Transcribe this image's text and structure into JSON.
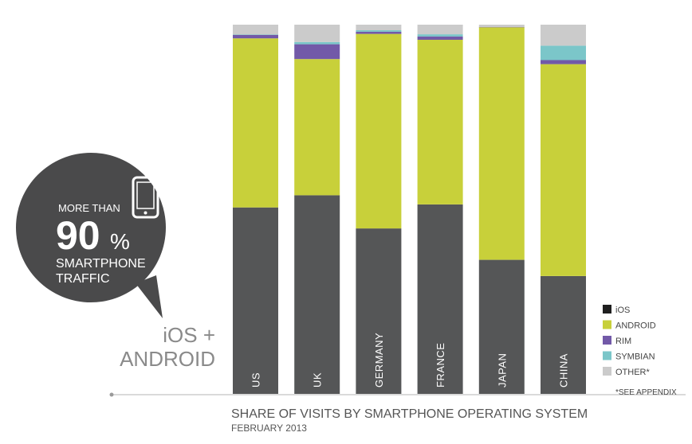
{
  "chart_data": {
    "type": "bar",
    "stacked": true,
    "categories": [
      "US",
      "UK",
      "GERMANY",
      "FRANCE",
      "JAPAN",
      "CHINA"
    ],
    "series": [
      {
        "name": "iOS",
        "color": "#555657",
        "values": [
          50.5,
          53.8,
          44.8,
          51.3,
          36.3,
          31.9
        ]
      },
      {
        "name": "ANDROID",
        "color": "#c8d03a",
        "values": [
          45.8,
          36.9,
          52.7,
          44.6,
          63.0,
          57.4
        ]
      },
      {
        "name": "RIM",
        "color": "#7259a8",
        "values": [
          0.9,
          4.0,
          0.6,
          0.9,
          0.1,
          1.1
        ]
      },
      {
        "name": "SYMBIAN",
        "color": "#7bc6c9",
        "values": [
          0.1,
          0.6,
          0.4,
          0.6,
          0.0,
          3.9
        ]
      },
      {
        "name": "OTHER*",
        "color": "#cbcbcb",
        "values": [
          2.7,
          4.7,
          1.5,
          2.6,
          0.6,
          5.7
        ]
      }
    ],
    "ylim": [
      0,
      100
    ],
    "legend_position": "bottom-right",
    "title": "SHARE OF VISITS BY SMARTPHONE OPERATING SYSTEM",
    "subtitle": "FEBRUARY 2013",
    "note": "*SEE APPENDIX"
  },
  "callout": {
    "line1": "MORE THAN",
    "big_number": "90",
    "percent_sign": "%",
    "line2": "SMARTPHONE",
    "line3": "TRAFFIC",
    "icon": "smartphone-icon",
    "bubble_color": "#4a4a4b"
  },
  "side_label": {
    "line1": "iOS +",
    "line2": "ANDROID"
  }
}
